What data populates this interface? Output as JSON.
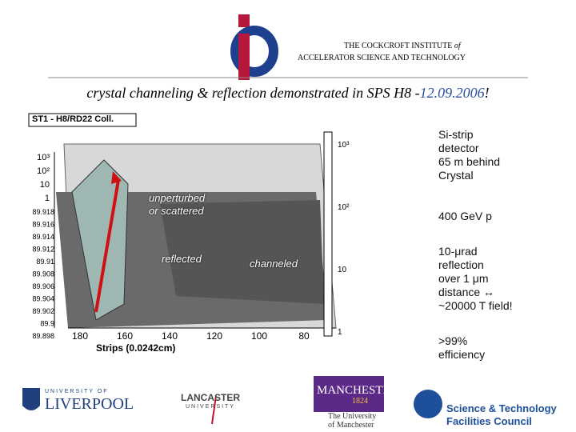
{
  "header": {
    "institute": "THE COCKCROFT INSTITUTE",
    "of": "of",
    "subtitle": "ACCELERATOR SCIENCE AND TECHNOLOGY"
  },
  "title": {
    "text": "crystal channeling & reflection demonstrated in SPS H8 -",
    "date": "12.09.2006",
    "end": "!"
  },
  "plot": {
    "panel_label": "ST1 - H8/RD22 Coll.",
    "annotations": [
      "unperturbed\nor scattered",
      "reflected",
      "channeled"
    ],
    "x_axis_label": "Strips (0.0242cm)",
    "x_ticks": [
      "180",
      "160",
      "140",
      "120",
      "100",
      "80"
    ],
    "y_ticks": [
      "89.918",
      "89.916",
      "89.914",
      "89.912",
      "89.91",
      "89.908",
      "89.906",
      "89.904",
      "89.902",
      "89.9",
      "89.898"
    ],
    "z_ticks": [
      "10³",
      "10²",
      "10",
      "1"
    ],
    "color_ticks": [
      "10³",
      "10²",
      "10",
      "1"
    ]
  },
  "notes": [
    "Si-strip\ndetector\n65 m behind\nCrystal",
    "400 GeV p",
    "10-μrad\nreflection\nover 1 μm\ndistance ↔\n~20000 T field!",
    ">99%\nefficiency"
  ],
  "logos": {
    "liverpool_top": "UNIVERSITY OF",
    "liverpool": "LIVERPOOL",
    "lancaster": "LANCASTER",
    "lancaster_sub": "UNIVERSITY",
    "manchester": "MANCHESTER",
    "manchester_year": "1824",
    "manchester_sub": "The University\nof Manchester",
    "stfc_1": "Science & Technology",
    "stfc_2": "Facilities Council"
  }
}
